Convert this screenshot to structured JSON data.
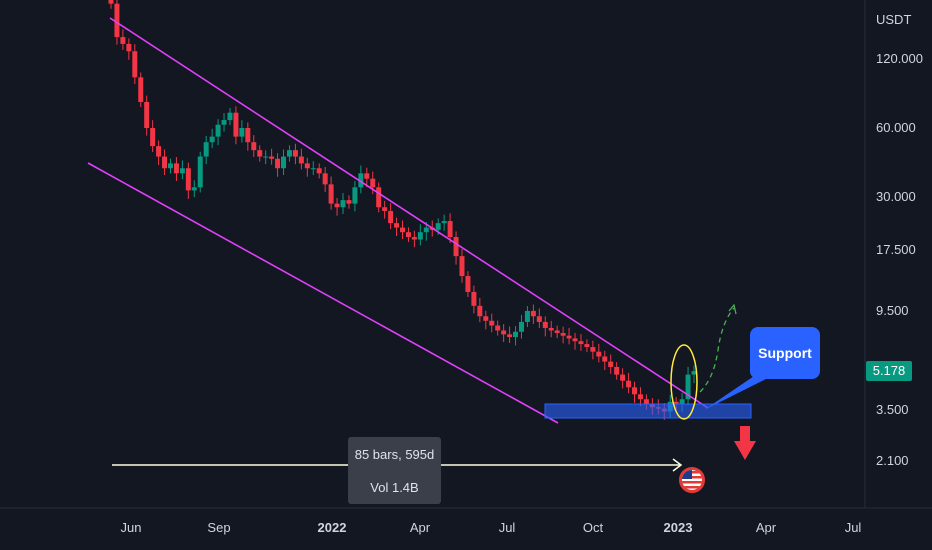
{
  "chart_data": {
    "type": "candlestick",
    "quote_currency": "USDT",
    "current_price": "5.178",
    "y_ticks": [
      "120.000",
      "60.000",
      "30.000",
      "17.500",
      "9.500",
      "3.500",
      "2.100"
    ],
    "y_tick_values": [
      120,
      60,
      30,
      17.5,
      9.5,
      3.5,
      2.1
    ],
    "y_scale": "log",
    "x_ticks": [
      {
        "label": "Jun",
        "bold": false
      },
      {
        "label": "Sep",
        "bold": false
      },
      {
        "label": "2022",
        "bold": true
      },
      {
        "label": "Apr",
        "bold": false
      },
      {
        "label": "Jul",
        "bold": false
      },
      {
        "label": "Oct",
        "bold": false
      },
      {
        "label": "2023",
        "bold": true
      },
      {
        "label": "Apr",
        "bold": false
      },
      {
        "label": "Jul",
        "bold": false
      }
    ],
    "closes": [
      210,
      150,
      140,
      130,
      100,
      78,
      60,
      50,
      45,
      40,
      42,
      38,
      40,
      32,
      33,
      45,
      52,
      55,
      62,
      65,
      70,
      55,
      60,
      52,
      48,
      45,
      45,
      44,
      40,
      45,
      48,
      45,
      42,
      40,
      40,
      38,
      34,
      28,
      27,
      29,
      28,
      33,
      38,
      36,
      33,
      27,
      26,
      23,
      22,
      21,
      20,
      19.5,
      21,
      22,
      21.5,
      23,
      23.5,
      20,
      16.5,
      13.5,
      11.5,
      10,
      9,
      8.6,
      8.2,
      7.8,
      7.5,
      7.3,
      7.7,
      8.5,
      9.5,
      9.0,
      8.5,
      8.0,
      7.8,
      7.6,
      7.4,
      7.2,
      7.0,
      6.8,
      6.6,
      6.3,
      6.0,
      5.7,
      5.4,
      5.0,
      4.7,
      4.4,
      4.1,
      3.9,
      3.7,
      3.6,
      3.55,
      3.45,
      3.8,
      3.7,
      3.9,
      5.0,
      5.178
    ],
    "annotations": {
      "support_label": "Support",
      "range_bars": "85 bars, 595d",
      "range_volume": "Vol 1.4B"
    },
    "colors": {
      "up": "#089981",
      "down": "#f23645",
      "channel": "#e040fb",
      "support_zone": "#2962ff",
      "highlight": "#ffeb3b",
      "projection": "#4caf50",
      "measure": "#ffffe0"
    }
  },
  "icons": {
    "flag": "us-flag-icon",
    "down_arrow": "red-down-arrow-icon"
  }
}
